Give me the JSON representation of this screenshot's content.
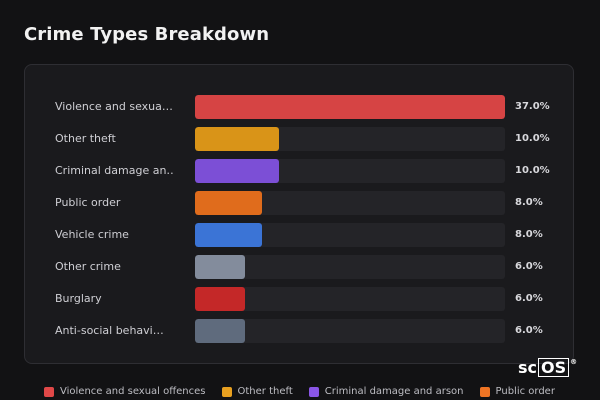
{
  "title": "Crime Types Breakdown",
  "brand": {
    "prefix": "sc",
    "boxed": "OS",
    "mark": "®"
  },
  "chart_data": {
    "type": "bar",
    "orientation": "horizontal",
    "title": "Crime Types Breakdown",
    "unit": "%",
    "xlim": [
      0,
      37.0
    ],
    "categories": [
      "Violence and sexua…",
      "Other theft",
      "Criminal damage an…",
      "Public order",
      "Vehicle crime",
      "Other crime",
      "Burglary",
      "Anti-social behavi…"
    ],
    "values": [
      37.0,
      10.0,
      10.0,
      8.0,
      8.0,
      6.0,
      6.0,
      6.0
    ],
    "value_labels": [
      "37.0%",
      "10.0%",
      "10.0%",
      "8.0%",
      "8.0%",
      "6.0%",
      "6.0%",
      "6.0%"
    ],
    "colors": [
      "#d64444",
      "#d99418",
      "#7c4fd6",
      "#e06c1c",
      "#3b74d6",
      "#838c9c",
      "#c42828",
      "#5f6b7d"
    ],
    "legend": [
      {
        "label": "Violence and sexual offences",
        "color": "#e04848"
      },
      {
        "label": "Other theft",
        "color": "#e8a020"
      },
      {
        "label": "Criminal damage and arson",
        "color": "#8a56e6"
      },
      {
        "label": "Public order",
        "color": "#ee7424"
      }
    ]
  }
}
